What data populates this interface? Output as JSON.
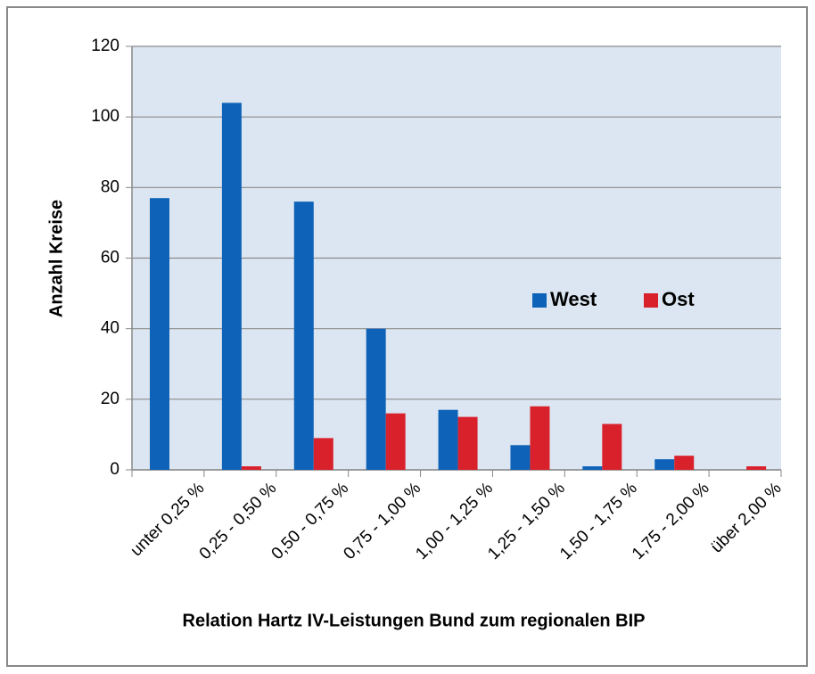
{
  "chart_data": {
    "type": "bar",
    "x_label": "Relation Hartz IV-Leistungen Bund zum regionalen BIP",
    "y_label": "Anzahl Kreise",
    "categories": [
      "unter 0,25 %",
      "0,25 - 0,50 %",
      "0,50 - 0,75 %",
      "0,75 - 1,00 %",
      "1,00 - 1,25 %",
      "1,25 - 1,50 %",
      "1,50 - 1,75 %",
      "1,75 - 2,00 %",
      "über 2,00 %"
    ],
    "series": [
      {
        "name": "West",
        "color": "#0e63b8",
        "values": [
          77,
          104,
          76,
          40,
          17,
          7,
          1,
          3,
          0
        ]
      },
      {
        "name": "Ost",
        "color": "#d9212c",
        "values": [
          0,
          1,
          9,
          16,
          15,
          18,
          13,
          4,
          1
        ]
      }
    ],
    "ylim": [
      0,
      120
    ],
    "yticks": [
      0,
      20,
      40,
      60,
      80,
      100,
      120
    ],
    "grid": true,
    "legend": "right"
  }
}
